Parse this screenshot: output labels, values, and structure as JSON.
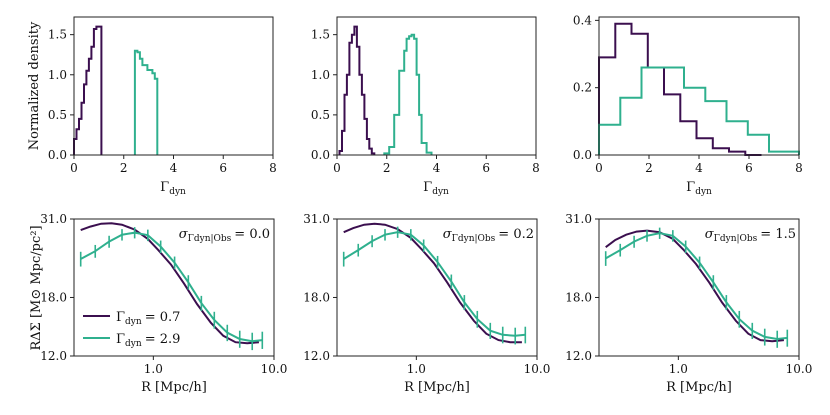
{
  "colors": {
    "low": "#3b0f4f",
    "high": "#2fb08e"
  },
  "chart_data": [
    {
      "type": "histogram",
      "id": "h1",
      "xlabel": "Γ",
      "xlabel_sub": "dyn",
      "ylabel": "Normalized density",
      "xlim": [
        0,
        8
      ],
      "ylim": [
        0,
        1.72
      ],
      "xticks": [
        0,
        2,
        4,
        6,
        8
      ],
      "xtick_labels": [
        "0",
        "2",
        "4",
        "6",
        "8"
      ],
      "yticks": [
        0,
        0.5,
        1.0,
        1.5
      ],
      "ytick_labels": [
        "0.0",
        "0.5",
        "1.0",
        "1.5"
      ],
      "series": [
        {
          "name": "Γdyn = 0.7",
          "color_key": "low",
          "edges": [
            0.0,
            0.1,
            0.2,
            0.3,
            0.4,
            0.5,
            0.6,
            0.7,
            0.8,
            0.9,
            1.0,
            1.1
          ],
          "values": [
            0.2,
            0.32,
            0.45,
            0.65,
            0.88,
            1.05,
            1.2,
            1.35,
            1.57,
            1.6,
            1.6
          ]
        },
        {
          "name": "Γdyn = 2.9",
          "color_key": "high",
          "edges": [
            2.45,
            2.55,
            2.65,
            2.75,
            2.85,
            2.95,
            3.05,
            3.15,
            3.25,
            3.35
          ],
          "values": [
            1.3,
            1.28,
            1.2,
            1.12,
            1.12,
            1.06,
            1.06,
            1.02,
            0.95
          ]
        }
      ]
    },
    {
      "type": "histogram",
      "id": "h2",
      "xlabel": "Γ",
      "xlabel_sub": "dyn",
      "xlim": [
        0,
        8
      ],
      "ylim": [
        0,
        1.72
      ],
      "xticks": [
        0,
        2,
        4,
        6,
        8
      ],
      "xtick_labels": [
        "0",
        "2",
        "4",
        "6",
        "8"
      ],
      "yticks": [
        0,
        0.5,
        1.0,
        1.5
      ],
      "ytick_labels": [
        "0.0",
        "0.5",
        "1.0",
        "1.5"
      ],
      "series": [
        {
          "name": "Γdyn = 0.7",
          "color_key": "low",
          "edges": [
            0.1,
            0.2,
            0.3,
            0.4,
            0.5,
            0.6,
            0.7,
            0.8,
            0.9,
            1.0,
            1.1,
            1.2,
            1.3,
            1.4,
            1.5
          ],
          "values": [
            0.05,
            0.3,
            0.75,
            1.0,
            1.4,
            1.5,
            1.6,
            1.35,
            1.0,
            0.75,
            0.45,
            0.2,
            0.08,
            0.02
          ]
        },
        {
          "name": "Γdyn = 2.9",
          "color_key": "high",
          "edges": [
            1.9,
            2.1,
            2.3,
            2.5,
            2.7,
            2.8,
            2.9,
            3.0,
            3.1,
            3.2,
            3.3,
            3.4,
            3.6,
            3.8
          ],
          "values": [
            0.02,
            0.1,
            0.5,
            1.05,
            1.3,
            1.45,
            1.48,
            1.5,
            1.45,
            1.0,
            0.5,
            0.15,
            0.03
          ]
        }
      ]
    },
    {
      "type": "histogram",
      "id": "h3",
      "xlabel": "Γ",
      "xlabel_sub": "dyn",
      "xlim": [
        0,
        8
      ],
      "ylim": [
        0,
        0.41
      ],
      "xticks": [
        0,
        2,
        4,
        6,
        8
      ],
      "xtick_labels": [
        "0",
        "2",
        "4",
        "6",
        "8"
      ],
      "yticks": [
        0,
        0.2,
        0.4
      ],
      "ytick_labels": [
        "0.0",
        "0.2",
        "0.4"
      ],
      "series": [
        {
          "name": "Γdyn = 0.7",
          "color_key": "low",
          "edges": [
            0.0,
            0.65,
            1.3,
            1.95,
            2.6,
            3.25,
            3.9,
            4.55,
            5.2,
            5.85,
            6.5
          ],
          "values": [
            0.29,
            0.39,
            0.36,
            0.26,
            0.18,
            0.1,
            0.05,
            0.02,
            0.01,
            0.0
          ]
        },
        {
          "name": "Γdyn = 2.9",
          "color_key": "high",
          "edges": [
            0.0,
            0.85,
            1.7,
            2.55,
            3.4,
            4.25,
            5.1,
            5.95,
            6.8,
            8.0
          ],
          "values": [
            0.09,
            0.17,
            0.26,
            0.26,
            0.2,
            0.16,
            0.1,
            0.06,
            0.01
          ]
        }
      ]
    },
    {
      "type": "line",
      "id": "l1",
      "xscale": "log",
      "yscale": "log",
      "xlabel": "R [Mpc/h]",
      "ylabel": "RΔΣ [M⊙ Mpc/pc²]",
      "xlim": [
        0.22,
        10
      ],
      "ylim": [
        12.0,
        31.0
      ],
      "xticks": [
        1.0,
        10.0
      ],
      "xtick_labels": [
        "1.0",
        "10.0"
      ],
      "yticks": [
        12.0,
        18.0,
        31.0
      ],
      "ytick_labels": [
        "12.0",
        "18.0",
        "31.0"
      ],
      "annotation": "σ",
      "annotation_sub": "Γdyn|Obs",
      "annotation_value": "= 0.0",
      "legend_position": "lower-left",
      "legend": [
        {
          "label": "Γ",
          "sub": "dyn",
          "value": "= 0.7",
          "color_key": "low"
        },
        {
          "label": "Γ",
          "sub": "dyn",
          "value": "= 2.9",
          "color_key": "high"
        }
      ],
      "series": [
        {
          "name": "Γdyn = 0.7",
          "color_key": "low",
          "x": [
            0.25,
            0.3,
            0.37,
            0.45,
            0.55,
            0.7,
            0.9,
            1.1,
            1.4,
            1.8,
            2.3,
            3.0,
            3.8,
            4.8,
            6.0,
            7.5
          ],
          "y": [
            28.7,
            29.4,
            30.0,
            30.1,
            29.8,
            28.8,
            27.0,
            25.0,
            22.6,
            19.8,
            17.2,
            15.1,
            13.8,
            13.2,
            13.1,
            13.2
          ]
        },
        {
          "name": "Γdyn = 2.9",
          "color_key": "high",
          "x": [
            0.25,
            0.33,
            0.43,
            0.55,
            0.7,
            0.9,
            1.15,
            1.5,
            1.95,
            2.5,
            3.2,
            4.1,
            5.2,
            6.6,
            8.0
          ],
          "y": [
            23.5,
            24.8,
            26.5,
            27.8,
            28.2,
            27.7,
            25.6,
            22.9,
            20.0,
            17.3,
            15.4,
            14.1,
            13.5,
            13.3,
            13.4
          ],
          "err": [
            1.2,
            1.1,
            1.1,
            1.1,
            1.1,
            1.1,
            1.1,
            1.0,
            1.0,
            0.9,
            0.9,
            0.8,
            0.8,
            0.8,
            0.8
          ]
        }
      ]
    },
    {
      "type": "line",
      "id": "l2",
      "xscale": "log",
      "yscale": "log",
      "xlabel": "R [Mpc/h]",
      "xlim": [
        0.22,
        10
      ],
      "ylim": [
        12.0,
        31.0
      ],
      "xticks": [
        1.0,
        10.0
      ],
      "xtick_labels": [
        "1.0",
        "10.0"
      ],
      "yticks": [
        12.0,
        18.0,
        31.0
      ],
      "ytick_labels": [
        "12.0",
        "18.0",
        "31.0"
      ],
      "annotation": "σ",
      "annotation_sub": "Γdyn|Obs",
      "annotation_value": "= 0.2",
      "series": [
        {
          "name": "Γdyn = 0.7",
          "color_key": "low",
          "x": [
            0.25,
            0.3,
            0.37,
            0.45,
            0.55,
            0.7,
            0.9,
            1.1,
            1.4,
            1.8,
            2.3,
            3.0,
            3.8,
            4.8,
            6.0,
            7.5
          ],
          "y": [
            28.3,
            29.1,
            29.8,
            30.0,
            29.8,
            28.9,
            27.2,
            25.2,
            22.8,
            20.0,
            17.4,
            15.3,
            14.0,
            13.4,
            13.2,
            13.2
          ]
        },
        {
          "name": "Γdyn = 2.9",
          "color_key": "high",
          "x": [
            0.25,
            0.33,
            0.43,
            0.55,
            0.7,
            0.9,
            1.15,
            1.5,
            1.95,
            2.5,
            3.2,
            4.1,
            5.2,
            6.6,
            8.0
          ],
          "y": [
            23.5,
            25.0,
            26.6,
            27.8,
            28.3,
            27.8,
            25.8,
            23.0,
            20.1,
            17.4,
            15.5,
            14.3,
            13.9,
            13.8,
            13.9
          ],
          "err": [
            1.2,
            1.1,
            1.1,
            1.1,
            1.1,
            1.1,
            1.1,
            1.0,
            1.0,
            0.9,
            0.9,
            0.8,
            0.8,
            0.8,
            0.8
          ]
        }
      ]
    },
    {
      "type": "line",
      "id": "l3",
      "xscale": "log",
      "yscale": "log",
      "xlabel": "R [Mpc/h]",
      "xlim": [
        0.22,
        10
      ],
      "ylim": [
        12.0,
        31.0
      ],
      "xticks": [
        1.0,
        10.0
      ],
      "xtick_labels": [
        "1.0",
        "10.0"
      ],
      "yticks": [
        12.0,
        18.0,
        31.0
      ],
      "ytick_labels": [
        "12.0",
        "18.0",
        "31.0"
      ],
      "annotation": "σ",
      "annotation_sub": "Γdyn|Obs",
      "annotation_value": "= 1.5",
      "series": [
        {
          "name": "Γdyn = 0.7",
          "color_key": "low",
          "x": [
            0.25,
            0.3,
            0.37,
            0.45,
            0.55,
            0.7,
            0.9,
            1.1,
            1.4,
            1.8,
            2.3,
            3.0,
            3.8,
            4.8,
            6.0,
            7.5
          ],
          "y": [
            25.5,
            26.8,
            27.8,
            28.4,
            28.6,
            28.3,
            27.0,
            25.1,
            22.7,
            20.0,
            17.4,
            15.3,
            14.0,
            13.4,
            13.3,
            13.4
          ]
        },
        {
          "name": "Γdyn = 2.9",
          "color_key": "high",
          "x": [
            0.25,
            0.33,
            0.43,
            0.55,
            0.7,
            0.9,
            1.15,
            1.5,
            1.95,
            2.5,
            3.2,
            4.1,
            5.2,
            6.6,
            8.0
          ],
          "y": [
            23.6,
            25.0,
            26.5,
            27.6,
            28.1,
            27.6,
            25.6,
            22.9,
            20.0,
            17.4,
            15.5,
            14.3,
            13.7,
            13.5,
            13.6
          ],
          "err": [
            1.2,
            1.1,
            1.1,
            1.1,
            1.1,
            1.1,
            1.1,
            1.0,
            1.0,
            0.9,
            0.9,
            0.8,
            0.8,
            0.8,
            0.8
          ]
        }
      ]
    }
  ]
}
